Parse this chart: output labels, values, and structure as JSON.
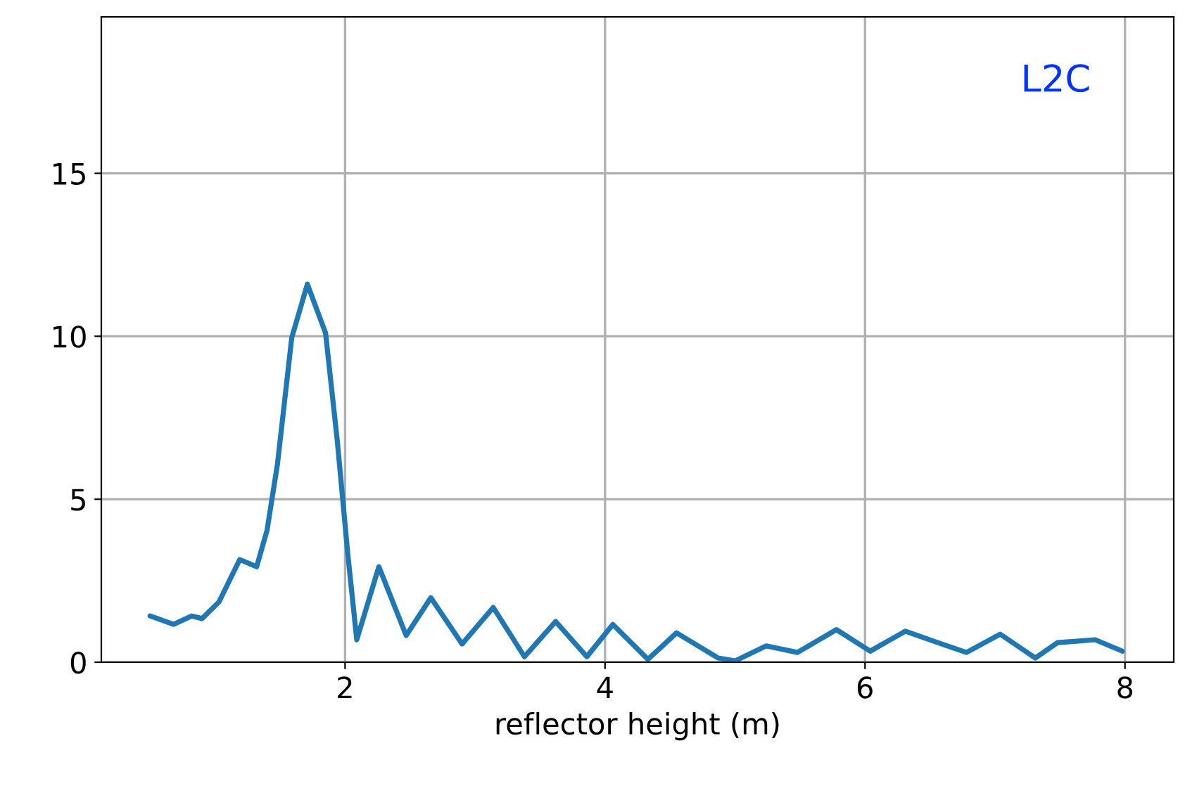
{
  "chart_data": {
    "type": "line",
    "xlabel": "reflector height (m)",
    "annotations": [
      "L2C"
    ],
    "x": [
      0.5,
      0.68,
      0.82,
      0.9,
      1.03,
      1.19,
      1.32,
      1.4,
      1.48,
      1.59,
      1.71,
      1.85,
      1.94,
      2.02,
      2.09,
      2.26,
      2.47,
      2.66,
      2.9,
      3.14,
      3.38,
      3.62,
      3.86,
      4.06,
      4.33,
      4.55,
      4.87,
      5.0,
      5.24,
      5.48,
      5.78,
      6.04,
      6.31,
      6.56,
      6.78,
      7.04,
      7.31,
      7.48,
      7.77,
      7.98
    ],
    "series": [
      {
        "color": "#1f77b4",
        "values": [
          1.42,
          1.16,
          1.42,
          1.34,
          1.85,
          3.15,
          2.93,
          4.05,
          6.08,
          9.96,
          11.6,
          10.1,
          6.8,
          3.36,
          0.69,
          2.93,
          0.82,
          1.98,
          0.56,
          1.68,
          0.17,
          1.25,
          0.17,
          1.16,
          0.09,
          0.9,
          0.13,
          0.04,
          0.5,
          0.3,
          1.0,
          0.34,
          0.95,
          0.6,
          0.3,
          0.86,
          0.13,
          0.6,
          0.69,
          0.34
        ]
      }
    ],
    "xlim": [
      0.125,
      8.375
    ],
    "ylim": [
      0,
      19.8
    ],
    "xticks": [
      2,
      4,
      6,
      8
    ],
    "yticks": [
      0,
      5,
      10,
      15
    ],
    "grid": true,
    "legend": false
  }
}
